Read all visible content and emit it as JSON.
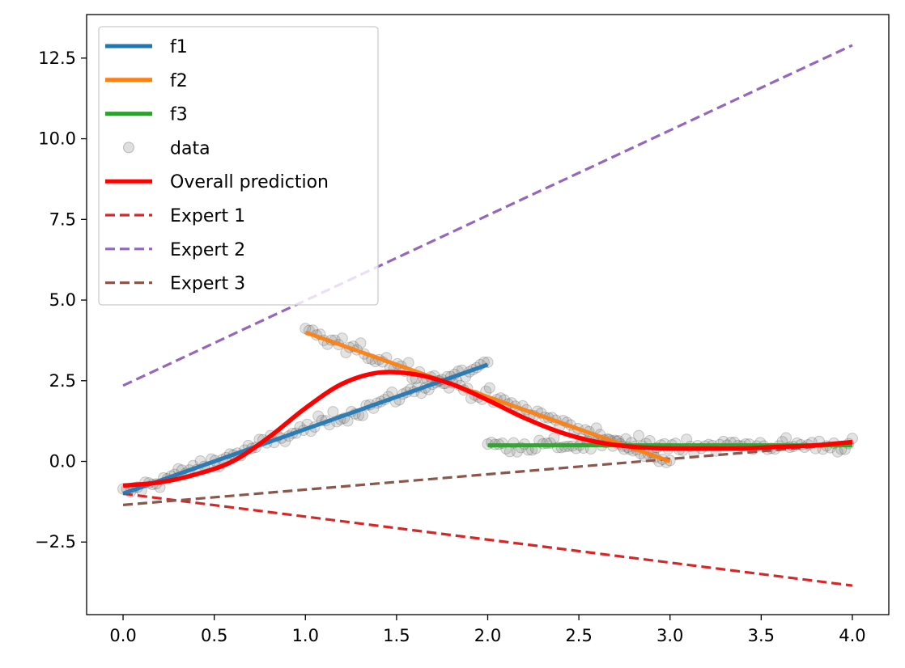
{
  "chart_data": {
    "type": "line",
    "title": "",
    "xlabel": "",
    "ylabel": "",
    "xlim": [
      -0.2,
      4.2
    ],
    "ylim": [
      -4.75,
      13.85
    ],
    "xticks": [
      0.0,
      0.5,
      1.0,
      1.5,
      2.0,
      2.5,
      3.0,
      3.5,
      4.0
    ],
    "xtick_labels": [
      "0.0",
      "0.5",
      "1.0",
      "1.5",
      "2.0",
      "2.5",
      "3.0",
      "3.5",
      "4.0"
    ],
    "yticks": [
      -2.5,
      0.0,
      2.5,
      5.0,
      7.5,
      10.0,
      12.5
    ],
    "ytick_labels": [
      "−2.5",
      "0.0",
      "2.5",
      "5.0",
      "7.5",
      "10.0",
      "12.5"
    ],
    "grid": false,
    "legend_position": "top-left",
    "legend": [
      {
        "label": "f1",
        "color": "#1f77b4",
        "style": "solid"
      },
      {
        "label": "f2",
        "color": "#ff7f0e",
        "style": "solid"
      },
      {
        "label": "f3",
        "color": "#2ca02c",
        "style": "solid"
      },
      {
        "label": "data",
        "color": "#808080",
        "style": "marker"
      },
      {
        "label": "Overall prediction",
        "color": "#ff0000",
        "style": "solid"
      },
      {
        "label": "Expert 1",
        "color": "#d62728",
        "style": "dashed"
      },
      {
        "label": "Expert 2",
        "color": "#9467bd",
        "style": "dashed"
      },
      {
        "label": "Expert 3",
        "color": "#8c564b",
        "style": "dashed"
      }
    ],
    "series": [
      {
        "name": "f1",
        "color": "#1f77b4",
        "style": "solid",
        "x": [
          0.0,
          2.0
        ],
        "y": [
          -1.0,
          3.0
        ]
      },
      {
        "name": "f2",
        "color": "#ff7f0e",
        "style": "solid",
        "x": [
          1.0,
          3.0
        ],
        "y": [
          4.0,
          0.0
        ]
      },
      {
        "name": "f3",
        "color": "#2ca02c",
        "style": "solid",
        "x": [
          2.0,
          4.0
        ],
        "y": [
          0.5,
          0.5
        ]
      },
      {
        "name": "Overall prediction",
        "color": "#ff0000",
        "style": "solid",
        "x": [
          0.0,
          0.2,
          0.4,
          0.6,
          0.8,
          1.0,
          1.2,
          1.4,
          1.6,
          1.8,
          2.0,
          2.2,
          2.4,
          2.6,
          2.8,
          3.0,
          3.2,
          3.4,
          3.6,
          3.8,
          4.0
        ],
        "y": [
          -0.75,
          -0.65,
          -0.4,
          0.0,
          0.75,
          1.65,
          2.4,
          2.75,
          2.7,
          2.4,
          1.9,
          1.35,
          0.9,
          0.6,
          0.45,
          0.4,
          0.4,
          0.4,
          0.45,
          0.5,
          0.6
        ]
      },
      {
        "name": "Expert 1",
        "color": "#d62728",
        "style": "dashed",
        "x": [
          0.0,
          4.0
        ],
        "y": [
          -1.0,
          -3.85
        ]
      },
      {
        "name": "Expert 2",
        "color": "#9467bd",
        "style": "dashed",
        "x": [
          0.0,
          4.0
        ],
        "y": [
          2.35,
          12.9
        ]
      },
      {
        "name": "Expert 3",
        "color": "#8c564b",
        "style": "dashed",
        "x": [
          0.0,
          4.0
        ],
        "y": [
          -1.35,
          0.55
        ]
      }
    ],
    "data_points": [
      {
        "segment": [
          0.0,
          2.0
        ],
        "slope": 2.0,
        "intercept": -1.0,
        "count": 100,
        "noise": 0.18
      },
      {
        "segment": [
          1.0,
          3.0
        ],
        "slope": -2.0,
        "intercept": 6.0,
        "count": 100,
        "noise": 0.18
      },
      {
        "segment": [
          2.0,
          4.0
        ],
        "slope": 0.0,
        "intercept": 0.5,
        "count": 100,
        "noise": 0.18
      }
    ]
  }
}
